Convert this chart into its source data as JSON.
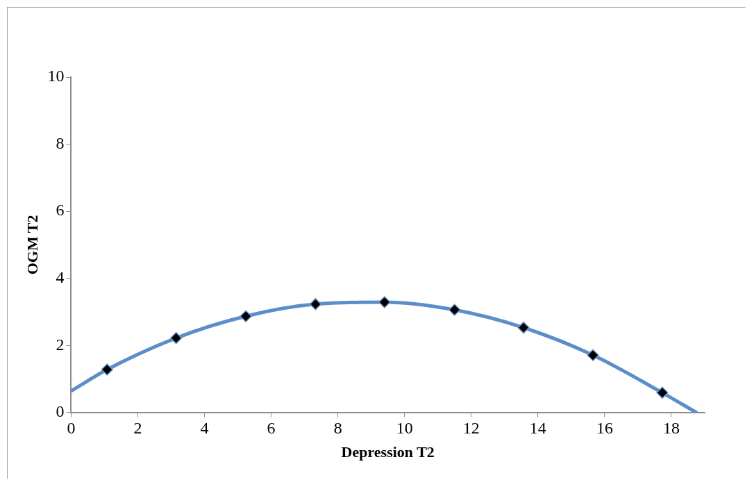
{
  "chart_data": {
    "type": "scatter",
    "xlabel": "Depression T2",
    "ylabel": "OGM T2",
    "xlim": [
      0,
      19
    ],
    "xticks": [
      0,
      2,
      4,
      6,
      8,
      10,
      12,
      14,
      16,
      18
    ],
    "ylim": [
      0,
      10
    ],
    "yticks": [
      0,
      2,
      4,
      6,
      8,
      10
    ],
    "grid": false,
    "legend": false,
    "series": [
      {
        "type": "line",
        "color": "#5b8ec9",
        "marker": "none",
        "line_style": "solid",
        "x": [
          0,
          1.08,
          3.15,
          5.24,
          7.33,
          9.4,
          11.5,
          13.57,
          15.65,
          17.73,
          18.75
        ],
        "values": [
          0.64,
          1.28,
          2.22,
          2.87,
          3.23,
          3.29,
          3.06,
          2.53,
          1.71,
          0.59,
          0
        ]
      },
      {
        "color": "#000000",
        "marker": "diamond",
        "x": [
          1.08,
          3.15,
          5.24,
          7.33,
          9.4,
          11.5,
          13.57,
          15.65,
          17.73
        ],
        "values": [
          1.28,
          2.22,
          2.87,
          3.23,
          3.29,
          3.06,
          2.53,
          1.71,
          0.59
        ]
      }
    ]
  }
}
